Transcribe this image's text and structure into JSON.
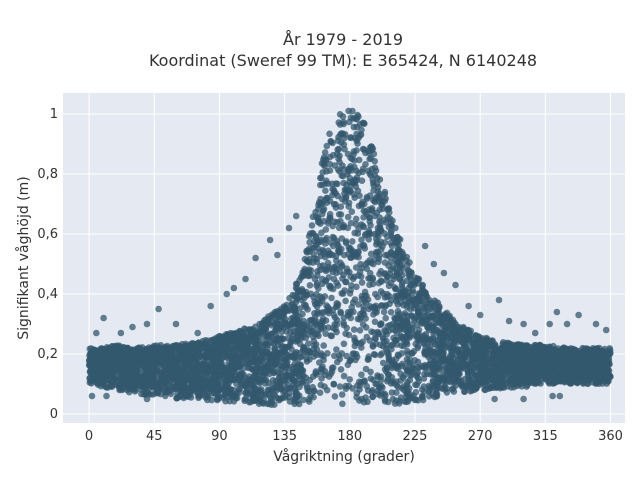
{
  "chart_data": {
    "type": "scatter",
    "title": "År 1979 - 2019",
    "subtitle": "Koordinat (Sweref 99 TM): E 365424, N 6140248",
    "xlabel": "Vågriktning (grader)",
    "ylabel": "Signifikant våghöjd (m)",
    "xlim": [
      -18,
      370
    ],
    "ylim": [
      -0.03,
      1.07
    ],
    "x_ticks": [
      "0",
      "45",
      "90",
      "135",
      "180",
      "225",
      "270",
      "315",
      "360"
    ],
    "y_ticks": [
      "0",
      "0,2",
      "0,4",
      "0,6",
      "0,8",
      "1"
    ],
    "grid": true,
    "legend": "none",
    "colors": {
      "plot_background": "#e5e9f2",
      "grid": "#ffffff",
      "marker": "#33586e"
    },
    "envelope": {
      "description_points_x": [
        0,
        10,
        20,
        30,
        45,
        60,
        75,
        90,
        105,
        120,
        135,
        145,
        150,
        155,
        160,
        165,
        170,
        175,
        180,
        185,
        190,
        195,
        200,
        205,
        210,
        215,
        220,
        225,
        235,
        245,
        255,
        270,
        285,
        300,
        315,
        330,
        345,
        360
      ],
      "upper": [
        0.22,
        0.22,
        0.23,
        0.22,
        0.23,
        0.23,
        0.24,
        0.26,
        0.28,
        0.31,
        0.37,
        0.45,
        0.55,
        0.68,
        0.82,
        0.93,
        0.98,
        1.01,
        1.02,
        1.0,
        0.97,
        0.9,
        0.82,
        0.73,
        0.65,
        0.58,
        0.52,
        0.47,
        0.4,
        0.35,
        0.3,
        0.26,
        0.24,
        0.23,
        0.23,
        0.22,
        0.22,
        0.22
      ],
      "lower": [
        0.1,
        0.09,
        0.08,
        0.07,
        0.06,
        0.05,
        0.05,
        0.04,
        0.04,
        0.03,
        0.03,
        0.03,
        0.03,
        0.03,
        0.03,
        0.03,
        0.03,
        0.03,
        0.03,
        0.03,
        0.03,
        0.03,
        0.03,
        0.03,
        0.03,
        0.03,
        0.04,
        0.04,
        0.05,
        0.06,
        0.07,
        0.08,
        0.08,
        0.09,
        0.1,
        0.1,
        0.1,
        0.1
      ]
    },
    "outliers": [
      {
        "x": 2,
        "y": 0.06
      },
      {
        "x": 5,
        "y": 0.27
      },
      {
        "x": 10,
        "y": 0.32
      },
      {
        "x": 22,
        "y": 0.27
      },
      {
        "x": 30,
        "y": 0.29
      },
      {
        "x": 40,
        "y": 0.3
      },
      {
        "x": 48,
        "y": 0.35
      },
      {
        "x": 60,
        "y": 0.3
      },
      {
        "x": 75,
        "y": 0.27
      },
      {
        "x": 84,
        "y": 0.36
      },
      {
        "x": 95,
        "y": 0.4
      },
      {
        "x": 100,
        "y": 0.42
      },
      {
        "x": 108,
        "y": 0.45
      },
      {
        "x": 115,
        "y": 0.52
      },
      {
        "x": 125,
        "y": 0.58
      },
      {
        "x": 130,
        "y": 0.53
      },
      {
        "x": 138,
        "y": 0.62
      },
      {
        "x": 143,
        "y": 0.66
      },
      {
        "x": 232,
        "y": 0.56
      },
      {
        "x": 238,
        "y": 0.5
      },
      {
        "x": 245,
        "y": 0.47
      },
      {
        "x": 253,
        "y": 0.43
      },
      {
        "x": 262,
        "y": 0.36
      },
      {
        "x": 270,
        "y": 0.33
      },
      {
        "x": 283,
        "y": 0.38
      },
      {
        "x": 290,
        "y": 0.31
      },
      {
        "x": 300,
        "y": 0.3
      },
      {
        "x": 308,
        "y": 0.27
      },
      {
        "x": 318,
        "y": 0.3
      },
      {
        "x": 323,
        "y": 0.34
      },
      {
        "x": 330,
        "y": 0.3
      },
      {
        "x": 338,
        "y": 0.33
      },
      {
        "x": 350,
        "y": 0.3
      },
      {
        "x": 357,
        "y": 0.28
      },
      {
        "x": 320,
        "y": 0.06
      },
      {
        "x": 325,
        "y": 0.06
      },
      {
        "x": 300,
        "y": 0.05
      },
      {
        "x": 280,
        "y": 0.05
      },
      {
        "x": 40,
        "y": 0.05
      },
      {
        "x": 12,
        "y": 0.06
      }
    ]
  }
}
